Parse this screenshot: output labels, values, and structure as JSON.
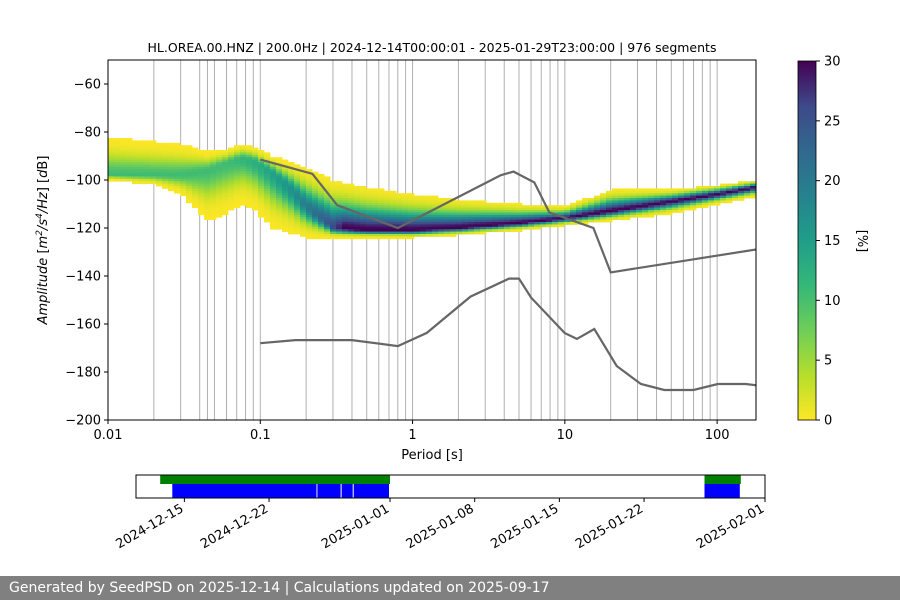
{
  "footer": {
    "text": "Generated by SeedPSD on 2025-12-14 | Calculations updated on 2025-09-17"
  },
  "colors": {
    "reference_model": "#666666",
    "coverage_processed": "#0000ff",
    "coverage_available": "#008000",
    "footer_bg": "#808080",
    "grid": "#b0b0b0"
  },
  "chart_data": [
    {
      "type": "heatmap",
      "title": "HL.OREA.00.HNZ | 200.0Hz | 2024-12-14T00:00:01 - 2025-01-29T23:00:00 | 976 segments",
      "xlabel": "Period [s]",
      "ylabel": "Amplitude [m²/s⁴/Hz] [dB]",
      "x_scale": "log",
      "xlim": [
        0.01,
        180
      ],
      "ylim": [
        -200,
        -50
      ],
      "xticks": [
        "0.01",
        "0.1",
        "1",
        "10",
        "100"
      ],
      "yticks": [
        -60,
        -80,
        -100,
        -120,
        -140,
        -160,
        -180,
        -200
      ],
      "grid_periods": [
        0.02,
        0.03,
        0.04,
        0.045,
        0.05,
        0.06,
        0.07,
        0.08,
        0.09,
        0.1,
        0.2,
        0.3,
        0.4,
        0.5,
        0.6,
        0.7,
        0.8,
        0.9,
        1,
        2,
        3,
        4,
        5,
        6,
        7,
        8,
        9,
        10,
        20,
        30,
        40,
        50,
        60,
        70,
        80,
        90,
        100
      ],
      "colorbar": {
        "label": "[%]",
        "range": [
          0,
          30
        ],
        "ticks": [
          0,
          5,
          10,
          15,
          20,
          25,
          30
        ],
        "colormap": "viridis_r"
      },
      "mode_curve": {
        "period": [
          0.01,
          0.02,
          0.03,
          0.045,
          0.06,
          0.075,
          0.09,
          0.12,
          0.16,
          0.2,
          0.3,
          0.5,
          1,
          2,
          5,
          10,
          20,
          50,
          100,
          180
        ],
        "db": [
          -98,
          -98,
          -98,
          -96,
          -93,
          -91,
          -92,
          -97,
          -104,
          -111,
          -120,
          -121,
          -121,
          -120,
          -118,
          -116,
          -113,
          -109,
          -106,
          -103
        ]
      },
      "hi_bound": {
        "period": [
          0.01,
          0.02,
          0.03,
          0.045,
          0.06,
          0.075,
          0.09,
          0.12,
          0.2,
          0.3,
          0.5,
          1,
          2,
          5,
          10,
          20,
          50,
          100,
          180
        ],
        "db": [
          -82,
          -84,
          -85,
          -88,
          -87,
          -85,
          -86,
          -90,
          -95,
          -100,
          -103,
          -106,
          -108,
          -110,
          -111,
          -104,
          -104,
          -102,
          -100
        ]
      },
      "lo_bound": {
        "period": [
          0.01,
          0.02,
          0.03,
          0.045,
          0.06,
          0.075,
          0.09,
          0.12,
          0.2,
          0.3,
          0.5,
          1,
          2,
          5,
          10,
          20,
          50,
          100,
          180
        ],
        "db": [
          -100,
          -102,
          -106,
          -117,
          -114,
          -110,
          -112,
          -120,
          -124,
          -124,
          -124,
          -124,
          -123,
          -121,
          -119,
          -117,
          -114,
          -110,
          -107
        ]
      },
      "noise_model_upper": {
        "period": [
          0.1,
          0.22,
          0.32,
          0.8,
          3.8,
          4.6,
          6.3,
          7.9,
          15.4,
          20,
          354.8
        ],
        "db": [
          -91.5,
          -97.4,
          -110.5,
          -120,
          -98,
          -96.5,
          -101,
          -113.5,
          -120,
          -138.5,
          -126
        ]
      },
      "noise_model_lower": {
        "period": [
          0.1,
          0.17,
          0.4,
          0.8,
          1.24,
          2.4,
          4.3,
          5,
          6,
          10,
          12,
          15.6,
          21.9,
          31.6,
          45,
          70,
          101,
          154,
          328
        ],
        "db": [
          -168,
          -166.7,
          -166.7,
          -169.2,
          -163.7,
          -148.6,
          -141.1,
          -141.1,
          -149,
          -163.8,
          -166.2,
          -162.1,
          -177.5,
          -185,
          -187.5,
          -187.5,
          -185,
          -185,
          -187.5
        ]
      }
    },
    {
      "type": "bar",
      "title": "",
      "x_type": "date",
      "xlim": [
        "2024-12-11",
        "2025-02-01"
      ],
      "xticks": [
        "2024-12-15",
        "2024-12-22",
        "2025-01-01",
        "2025-01-08",
        "2025-01-15",
        "2025-01-22",
        "2025-02-01"
      ],
      "series": [
        {
          "role": "available",
          "color": "#008000",
          "spans": [
            [
              "2024-12-13",
              "2025-01-01"
            ],
            [
              "2025-01-27",
              "2025-01-30"
            ]
          ]
        },
        {
          "role": "processed",
          "color": "#0000ff",
          "spans": [
            [
              "2024-12-14",
              "2024-12-26"
            ],
            [
              "2024-12-26",
              "2024-12-28"
            ],
            [
              "2024-12-28",
              "2024-12-29"
            ],
            [
              "2024-12-29",
              "2025-01-01"
            ],
            [
              "2025-01-27",
              "2025-01-30"
            ]
          ]
        }
      ]
    }
  ]
}
